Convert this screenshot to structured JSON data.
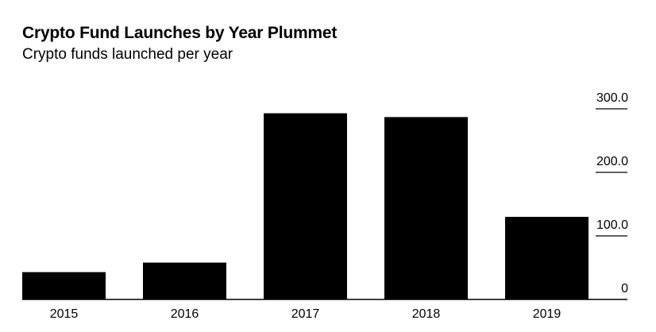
{
  "chart_data": {
    "type": "bar",
    "title": "Crypto Fund Launches by Year Plummet",
    "subtitle": "Crypto funds launched per year",
    "categories": [
      "2015",
      "2016",
      "2017",
      "2018",
      "2019"
    ],
    "values": [
      43,
      58,
      293,
      287,
      130
    ],
    "ylim": [
      0,
      300
    ],
    "yticks": [
      0,
      100,
      200,
      300
    ],
    "ytick_labels": [
      "0",
      "100.0",
      "200.0",
      "300.0"
    ],
    "bar_color": "#000000",
    "grid": false,
    "xlabel": "",
    "ylabel": ""
  }
}
